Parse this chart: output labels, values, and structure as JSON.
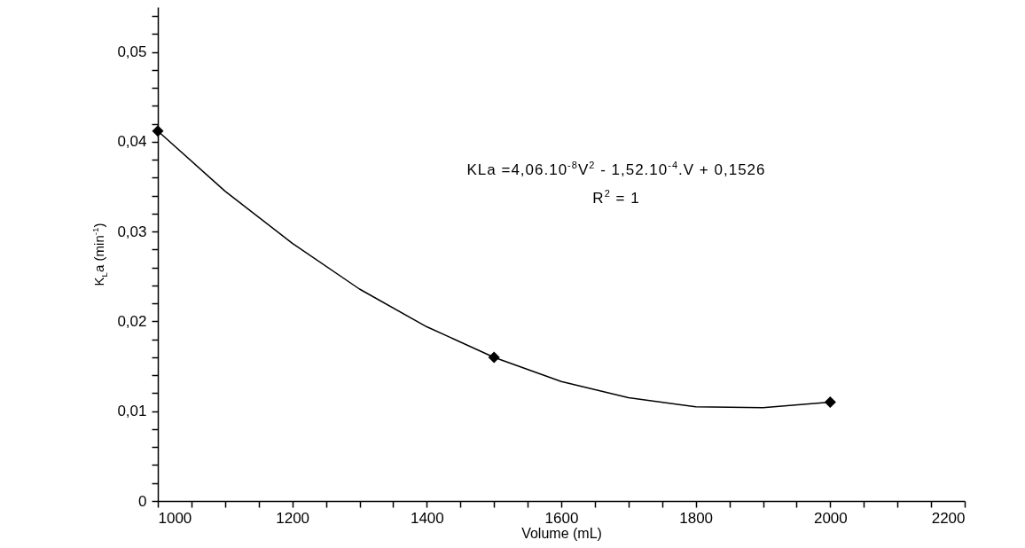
{
  "chart_data": {
    "type": "scatter",
    "xlabel": "Volume (mL)",
    "ylabel": "K$_{L}$a (min$^{-1}$)",
    "annotations": [
      "KLa =4,06.10$^{-8}$V$^{2}$ - 1,52.10$^{-4}$.V + 0,1526",
      "R$^{2}$ = 1"
    ],
    "series": [
      {
        "type": "line",
        "color": "#000000",
        "x": [
          1000,
          1100,
          1200,
          1300,
          1400,
          1500,
          1600,
          1700,
          1800,
          1900,
          2000
        ],
        "values": [
          0.0412,
          0.0345,
          0.0287,
          0.0236,
          0.0194,
          0.016,
          0.0133,
          0.0115,
          0.0105,
          0.0104,
          0.011
        ]
      },
      {
        "color": "#000000",
        "marker": "diamond",
        "x": [
          1000,
          1500,
          2000
        ],
        "values": [
          0.0412,
          0.016,
          0.011
        ]
      }
    ],
    "grid": false,
    "xlim": [
      1000,
      2200
    ],
    "xticks": [
      1000,
      {
        "value": 1050,
        "label": null
      },
      {
        "value": 1100,
        "label": null
      },
      {
        "value": 1150,
        "label": null
      },
      1200,
      {
        "value": 1250,
        "label": null
      },
      {
        "value": 1300,
        "label": null
      },
      {
        "value": 1350,
        "label": null
      },
      1400,
      {
        "value": 1450,
        "label": null
      },
      {
        "value": 1500,
        "label": null
      },
      {
        "value": 1550,
        "label": null
      },
      1600,
      {
        "value": 1650,
        "label": null
      },
      {
        "value": 1700,
        "label": null
      },
      {
        "value": 1750,
        "label": null
      },
      1800,
      {
        "value": 1850,
        "label": null
      },
      {
        "value": 1900,
        "label": null
      },
      {
        "value": 1950,
        "label": null
      },
      2000,
      {
        "value": 2050,
        "label": null
      },
      {
        "value": 2100,
        "label": null
      },
      {
        "value": 2150,
        "label": null
      },
      2200
    ],
    "ylim": [
      0,
      0.055
    ],
    "yticks": [
      0,
      {
        "value": 0.002,
        "label": null
      },
      {
        "value": 0.004,
        "label": null
      },
      {
        "value": 0.006,
        "label": null
      },
      {
        "value": 0.008,
        "label": null
      },
      {
        "value": 0.01,
        "label": "0,01"
      },
      {
        "value": 0.012,
        "label": null
      },
      {
        "value": 0.014,
        "label": null
      },
      {
        "value": 0.016,
        "label": null
      },
      {
        "value": 0.018,
        "label": null
      },
      {
        "value": 0.02,
        "label": "0,02"
      },
      {
        "value": 0.022,
        "label": null
      },
      {
        "value": 0.024,
        "label": null
      },
      {
        "value": 0.026,
        "label": null
      },
      {
        "value": 0.028,
        "label": null
      },
      {
        "value": 0.03,
        "label": "0,03"
      },
      {
        "value": 0.032,
        "label": null
      },
      {
        "value": 0.034,
        "label": null
      },
      {
        "value": 0.036,
        "label": null
      },
      {
        "value": 0.038,
        "label": null
      },
      {
        "value": 0.04,
        "label": "0,04"
      },
      {
        "value": 0.042,
        "label": null
      },
      {
        "value": 0.044,
        "label": null
      },
      {
        "value": 0.046,
        "label": null
      },
      {
        "value": 0.048,
        "label": null
      },
      {
        "value": 0.05,
        "label": "0,05"
      },
      {
        "value": 0.052,
        "label": null
      },
      {
        "value": 0.054,
        "label": null
      }
    ]
  }
}
